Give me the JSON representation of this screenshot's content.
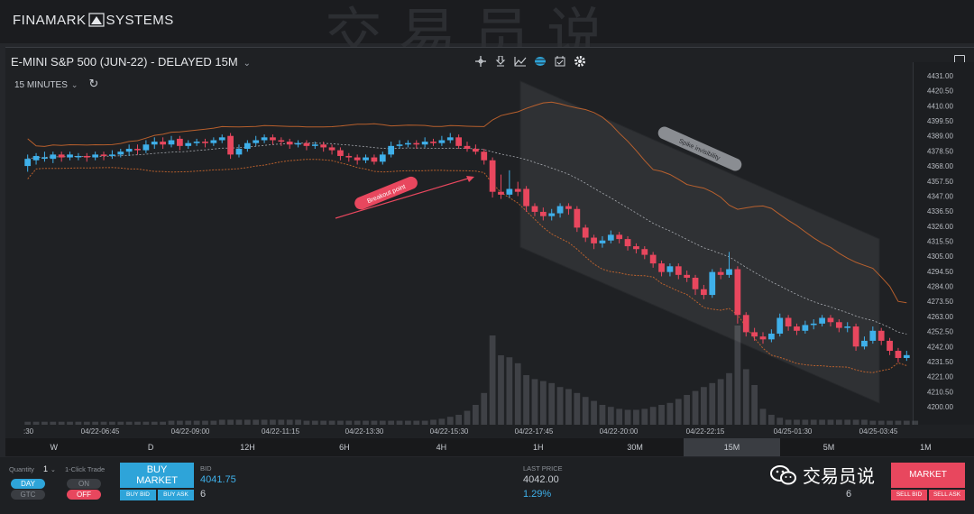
{
  "app": {
    "logo_left": "FINAMARK",
    "logo_right": "SYSTEMS",
    "watermark_top": "交易员说"
  },
  "chart": {
    "title": "E-MINI S&P 500 (JUN-22) - DELAYED 15M",
    "interval": "15 MINUTES",
    "tool_icons": [
      "crosshair-icon",
      "marker-icon",
      "indicator-icon",
      "layers-icon",
      "calendar-icon",
      "gear-icon"
    ],
    "annotations": {
      "breakout": "Breakout point",
      "spike": "Spike invisibility"
    }
  },
  "chart_data": {
    "type": "candlestick",
    "y_ticks": [
      "4431.00",
      "4420.50",
      "4410.00",
      "4399.50",
      "4389.00",
      "4378.50",
      "4368.00",
      "4357.50",
      "4347.00",
      "4336.50",
      "4326.00",
      "4315.50",
      "4305.00",
      "4294.50",
      "4284.00",
      "4273.50",
      "4263.00",
      "4252.50",
      "4242.00",
      "4231.50",
      "4221.00",
      "4210.50",
      "4200.00"
    ],
    "y_range": [
      4200.0,
      4431.0
    ],
    "x_ticks": [
      ":30",
      "04/22-06:45",
      "04/22-09:00",
      "04/22-11:15",
      "04/22-13:30",
      "04/22-15:30",
      "04/22-17:45",
      "04/22-20:00",
      "04/22-22:15",
      "04/25-01:30",
      "04/25-03:45"
    ],
    "candles": [
      {
        "o": 4368,
        "c": 4373,
        "h": 4376,
        "l": 4364
      },
      {
        "o": 4372,
        "c": 4375,
        "h": 4377,
        "l": 4369
      },
      {
        "o": 4374,
        "c": 4374,
        "h": 4378,
        "l": 4371
      },
      {
        "o": 4373,
        "c": 4376,
        "h": 4378,
        "l": 4370
      },
      {
        "o": 4376,
        "c": 4374,
        "h": 4378,
        "l": 4371
      },
      {
        "o": 4374,
        "c": 4376,
        "h": 4378,
        "l": 4372
      },
      {
        "o": 4375,
        "c": 4375,
        "h": 4377,
        "l": 4372
      },
      {
        "o": 4375,
        "c": 4374,
        "h": 4377,
        "l": 4371
      },
      {
        "o": 4374,
        "c": 4376,
        "h": 4378,
        "l": 4372
      },
      {
        "o": 4376,
        "c": 4375,
        "h": 4378,
        "l": 4372
      },
      {
        "o": 4375,
        "c": 4376,
        "h": 4379,
        "l": 4373
      },
      {
        "o": 4376,
        "c": 4378,
        "h": 4380,
        "l": 4374
      },
      {
        "o": 4378,
        "c": 4380,
        "h": 4383,
        "l": 4375
      },
      {
        "o": 4380,
        "c": 4379,
        "h": 4383,
        "l": 4376
      },
      {
        "o": 4379,
        "c": 4383,
        "h": 4386,
        "l": 4377
      },
      {
        "o": 4383,
        "c": 4385,
        "h": 4388,
        "l": 4380
      },
      {
        "o": 4385,
        "c": 4383,
        "h": 4388,
        "l": 4380
      },
      {
        "o": 4383,
        "c": 4386,
        "h": 4389,
        "l": 4381
      },
      {
        "o": 4387,
        "c": 4382,
        "h": 4389,
        "l": 4379
      },
      {
        "o": 4382,
        "c": 4384,
        "h": 4386,
        "l": 4380
      },
      {
        "o": 4384,
        "c": 4385,
        "h": 4387,
        "l": 4382
      },
      {
        "o": 4385,
        "c": 4384,
        "h": 4387,
        "l": 4381
      },
      {
        "o": 4384,
        "c": 4386,
        "h": 4388,
        "l": 4382
      },
      {
        "o": 4386,
        "c": 4388,
        "h": 4390,
        "l": 4384
      },
      {
        "o": 4389,
        "c": 4376,
        "h": 4391,
        "l": 4373
      },
      {
        "o": 4376,
        "c": 4380,
        "h": 4383,
        "l": 4374
      },
      {
        "o": 4380,
        "c": 4384,
        "h": 4386,
        "l": 4378
      },
      {
        "o": 4384,
        "c": 4386,
        "h": 4389,
        "l": 4382
      },
      {
        "o": 4386,
        "c": 4388,
        "h": 4390,
        "l": 4384
      },
      {
        "o": 4388,
        "c": 4386,
        "h": 4390,
        "l": 4383
      },
      {
        "o": 4386,
        "c": 4385,
        "h": 4388,
        "l": 4382
      },
      {
        "o": 4385,
        "c": 4383,
        "h": 4387,
        "l": 4380
      },
      {
        "o": 4383,
        "c": 4384,
        "h": 4386,
        "l": 4381
      },
      {
        "o": 4384,
        "c": 4382,
        "h": 4386,
        "l": 4379
      },
      {
        "o": 4382,
        "c": 4383,
        "h": 4385,
        "l": 4380
      },
      {
        "o": 4383,
        "c": 4381,
        "h": 4385,
        "l": 4378
      },
      {
        "o": 4381,
        "c": 4379,
        "h": 4383,
        "l": 4376
      },
      {
        "o": 4379,
        "c": 4375,
        "h": 4381,
        "l": 4372
      },
      {
        "o": 4375,
        "c": 4374,
        "h": 4377,
        "l": 4371
      },
      {
        "o": 4374,
        "c": 4372,
        "h": 4376,
        "l": 4369
      },
      {
        "o": 4372,
        "c": 4374,
        "h": 4376,
        "l": 4370
      },
      {
        "o": 4374,
        "c": 4371,
        "h": 4376,
        "l": 4369
      },
      {
        "o": 4371,
        "c": 4376,
        "h": 4378,
        "l": 4369
      },
      {
        "o": 4376,
        "c": 4382,
        "h": 4385,
        "l": 4374
      },
      {
        "o": 4382,
        "c": 4383,
        "h": 4386,
        "l": 4380
      },
      {
        "o": 4383,
        "c": 4384,
        "h": 4386,
        "l": 4381
      },
      {
        "o": 4384,
        "c": 4383,
        "h": 4386,
        "l": 4380
      },
      {
        "o": 4383,
        "c": 4385,
        "h": 4388,
        "l": 4381
      },
      {
        "o": 4385,
        "c": 4384,
        "h": 4387,
        "l": 4382
      },
      {
        "o": 4384,
        "c": 4386,
        "h": 4389,
        "l": 4382
      },
      {
        "o": 4386,
        "c": 4388,
        "h": 4391,
        "l": 4384
      },
      {
        "o": 4388,
        "c": 4382,
        "h": 4390,
        "l": 4380
      },
      {
        "o": 4382,
        "c": 4380,
        "h": 4385,
        "l": 4378
      },
      {
        "o": 4380,
        "c": 4378,
        "h": 4383,
        "l": 4376
      },
      {
        "o": 4378,
        "c": 4372,
        "h": 4380,
        "l": 4369
      },
      {
        "o": 4372,
        "c": 4350,
        "h": 4374,
        "l": 4346
      },
      {
        "o": 4350,
        "c": 4348,
        "h": 4362,
        "l": 4345
      },
      {
        "o": 4348,
        "c": 4352,
        "h": 4365,
        "l": 4346
      },
      {
        "o": 4352,
        "c": 4350,
        "h": 4357,
        "l": 4347
      },
      {
        "o": 4352,
        "c": 4340,
        "h": 4354,
        "l": 4336
      },
      {
        "o": 4340,
        "c": 4336,
        "h": 4342,
        "l": 4333
      },
      {
        "o": 4336,
        "c": 4333,
        "h": 4339,
        "l": 4330
      },
      {
        "o": 4333,
        "c": 4335,
        "h": 4338,
        "l": 4330
      },
      {
        "o": 4335,
        "c": 4340,
        "h": 4342,
        "l": 4332
      },
      {
        "o": 4340,
        "c": 4338,
        "h": 4342,
        "l": 4334
      },
      {
        "o": 4338,
        "c": 4325,
        "h": 4340,
        "l": 4322
      },
      {
        "o": 4325,
        "c": 4318,
        "h": 4327,
        "l": 4315
      },
      {
        "o": 4318,
        "c": 4314,
        "h": 4320,
        "l": 4310
      },
      {
        "o": 4314,
        "c": 4316,
        "h": 4319,
        "l": 4311
      },
      {
        "o": 4316,
        "c": 4320,
        "h": 4323,
        "l": 4314
      },
      {
        "o": 4320,
        "c": 4317,
        "h": 4322,
        "l": 4314
      },
      {
        "o": 4317,
        "c": 4312,
        "h": 4319,
        "l": 4309
      },
      {
        "o": 4312,
        "c": 4310,
        "h": 4314,
        "l": 4307
      },
      {
        "o": 4310,
        "c": 4306,
        "h": 4312,
        "l": 4303
      },
      {
        "o": 4306,
        "c": 4300,
        "h": 4308,
        "l": 4297
      },
      {
        "o": 4300,
        "c": 4294,
        "h": 4302,
        "l": 4291
      },
      {
        "o": 4294,
        "c": 4298,
        "h": 4300,
        "l": 4291
      },
      {
        "o": 4298,
        "c": 4292,
        "h": 4300,
        "l": 4289
      },
      {
        "o": 4292,
        "c": 4290,
        "h": 4295,
        "l": 4287
      },
      {
        "o": 4290,
        "c": 4282,
        "h": 4292,
        "l": 4278
      },
      {
        "o": 4282,
        "c": 4278,
        "h": 4285,
        "l": 4275
      },
      {
        "o": 4278,
        "c": 4294,
        "h": 4296,
        "l": 4276
      },
      {
        "o": 4294,
        "c": 4292,
        "h": 4297,
        "l": 4289
      },
      {
        "o": 4292,
        "c": 4296,
        "h": 4308,
        "l": 4290
      },
      {
        "o": 4296,
        "c": 4264,
        "h": 4298,
        "l": 4258
      },
      {
        "o": 4264,
        "c": 4252,
        "h": 4266,
        "l": 4249
      },
      {
        "o": 4252,
        "c": 4249,
        "h": 4255,
        "l": 4246
      },
      {
        "o": 4249,
        "c": 4247,
        "h": 4252,
        "l": 4244
      },
      {
        "o": 4247,
        "c": 4251,
        "h": 4254,
        "l": 4245
      },
      {
        "o": 4251,
        "c": 4262,
        "h": 4265,
        "l": 4249
      },
      {
        "o": 4262,
        "c": 4256,
        "h": 4264,
        "l": 4253
      },
      {
        "o": 4256,
        "c": 4253,
        "h": 4258,
        "l": 4250
      },
      {
        "o": 4253,
        "c": 4257,
        "h": 4260,
        "l": 4251
      },
      {
        "o": 4257,
        "c": 4258,
        "h": 4261,
        "l": 4254
      },
      {
        "o": 4258,
        "c": 4262,
        "h": 4264,
        "l": 4256
      },
      {
        "o": 4262,
        "c": 4259,
        "h": 4264,
        "l": 4256
      },
      {
        "o": 4259,
        "c": 4255,
        "h": 4261,
        "l": 4252
      },
      {
        "o": 4255,
        "c": 4256,
        "h": 4259,
        "l": 4252
      },
      {
        "o": 4256,
        "c": 4242,
        "h": 4258,
        "l": 4239
      },
      {
        "o": 4242,
        "c": 4246,
        "h": 4249,
        "l": 4240
      },
      {
        "o": 4246,
        "c": 4253,
        "h": 4256,
        "l": 4244
      },
      {
        "o": 4253,
        "c": 4246,
        "h": 4255,
        "l": 4243
      },
      {
        "o": 4246,
        "c": 4239,
        "h": 4248,
        "l": 4236
      },
      {
        "o": 4239,
        "c": 4234,
        "h": 4241,
        "l": 4231
      },
      {
        "o": 4234,
        "c": 4236,
        "h": 4239,
        "l": 4232
      }
    ],
    "volume_relative": [
      0.03,
      0.03,
      0.03,
      0.03,
      0.03,
      0.03,
      0.03,
      0.03,
      0.03,
      0.03,
      0.03,
      0.03,
      0.03,
      0.03,
      0.03,
      0.03,
      0.03,
      0.04,
      0.04,
      0.04,
      0.04,
      0.04,
      0.04,
      0.05,
      0.05,
      0.05,
      0.05,
      0.05,
      0.05,
      0.05,
      0.05,
      0.05,
      0.05,
      0.04,
      0.04,
      0.04,
      0.04,
      0.04,
      0.04,
      0.04,
      0.04,
      0.04,
      0.04,
      0.04,
      0.04,
      0.04,
      0.04,
      0.04,
      0.05,
      0.06,
      0.08,
      0.1,
      0.14,
      0.2,
      0.32,
      0.9,
      0.7,
      0.68,
      0.62,
      0.5,
      0.46,
      0.44,
      0.42,
      0.38,
      0.36,
      0.32,
      0.28,
      0.24,
      0.2,
      0.18,
      0.16,
      0.15,
      0.15,
      0.16,
      0.18,
      0.2,
      0.22,
      0.26,
      0.3,
      0.34,
      0.38,
      0.42,
      0.46,
      0.52,
      1.0,
      0.56,
      0.4,
      0.16,
      0.1,
      0.07,
      0.05,
      0.05,
      0.05,
      0.05,
      0.05,
      0.05,
      0.05,
      0.05,
      0.05,
      0.05,
      0.04,
      0.04,
      0.04,
      0.04,
      0.04,
      0.04
    ]
  },
  "timeframes": {
    "items": [
      "W",
      "D",
      "12H",
      "6H",
      "4H",
      "1H",
      "30M",
      "15M",
      "5M",
      "1M"
    ],
    "active": "15M"
  },
  "order": {
    "quantity_label": "Quantity",
    "quantity_value": "1",
    "one_click_label": "1-Click Trade",
    "day": "DAY",
    "gtc": "GTC",
    "on": "ON",
    "off": "OFF",
    "buy_market_1": "BUY",
    "buy_market_2": "MARKET",
    "buy_bid": "BUY BID",
    "buy_ask": "BUY ASK",
    "bid_label": "BID",
    "bid_value": "4041.75",
    "bid_size": "6",
    "last_label": "LAST PRICE",
    "last_value": "4042.00",
    "last_change": "1.29%",
    "sell_market": "MARKET",
    "sell_bid": "SELL BID",
    "sell_ask": "SELL ASK",
    "ask_size": "6"
  },
  "watermark": {
    "brand": "交易员说"
  },
  "colors": {
    "up": "#3fb0ea",
    "down": "#e8475e",
    "band": "#c8662e",
    "mid": "#c8ccd2"
  }
}
